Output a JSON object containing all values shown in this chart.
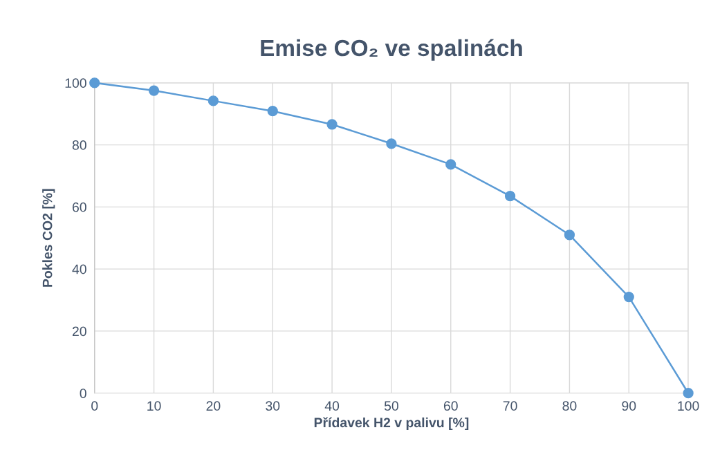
{
  "chart_data": {
    "type": "line",
    "title": "Emise CO₂ ve spalinách",
    "xlabel": "Přídavek H2 v palivu [%]",
    "ylabel": "Pokles CO2 [%]",
    "x": [
      0,
      10,
      20,
      30,
      40,
      50,
      60,
      70,
      80,
      90,
      100
    ],
    "series": [
      {
        "color": "#5b9bd5",
        "values": [
          100,
          97.5,
          94.2,
          90.9,
          86.6,
          80.4,
          73.7,
          63.5,
          51.0,
          31.0,
          0
        ]
      }
    ],
    "xlim": [
      0,
      100
    ],
    "xticks": [
      0,
      10,
      20,
      30,
      40,
      50,
      60,
      70,
      80,
      90,
      100
    ],
    "ylim": [
      0,
      100
    ],
    "yticks": [
      0,
      20,
      40,
      60,
      80,
      100
    ],
    "grid": true,
    "marker": "circle",
    "line_style": "solid",
    "legend": false
  }
}
